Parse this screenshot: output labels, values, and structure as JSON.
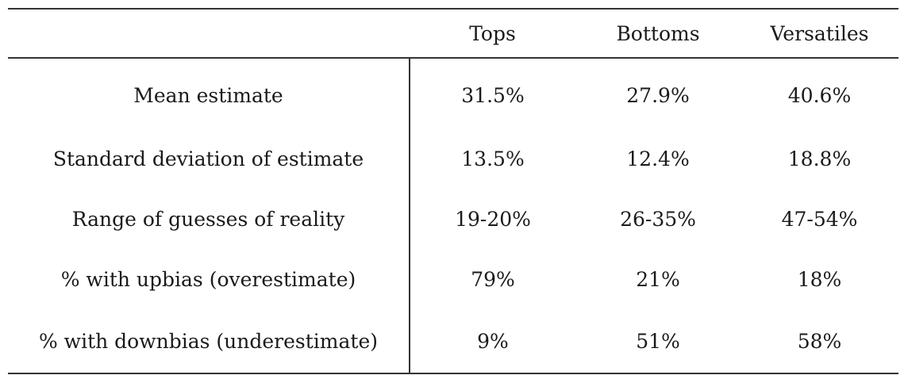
{
  "table": {
    "columns": [
      "",
      "Tops",
      "Bottoms",
      "Versatiles"
    ],
    "rows": [
      {
        "label": "Mean estimate",
        "values": [
          "31.5%",
          "27.9%",
          "40.6%"
        ]
      },
      {
        "label": "Standard deviation of estimate",
        "values": [
          "13.5%",
          "12.4%",
          "18.8%"
        ]
      },
      {
        "label": "Range of guesses of reality",
        "values": [
          "19-20%",
          "26-35%",
          "47-54%"
        ]
      },
      {
        "label": "% with upbias (overestimate)",
        "values": [
          "79%",
          "21%",
          "18%"
        ]
      },
      {
        "label": "% with downbias (underestimate)",
        "values": [
          "9%",
          "51%",
          "58%"
        ]
      }
    ]
  }
}
